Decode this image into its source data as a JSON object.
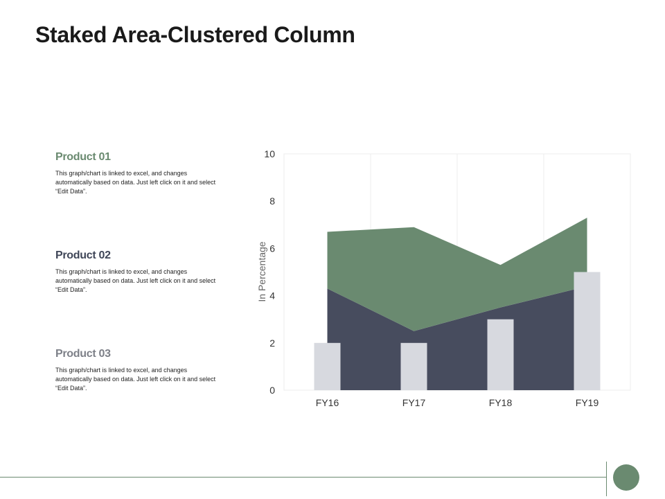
{
  "title": "Staked Area-Clustered Column",
  "products": [
    {
      "title": "Product 01",
      "description": "This graph/chart is linked to excel, and changes automatically based on data. Just left click on it and select “Edit Data”."
    },
    {
      "title": "Product 02",
      "description": "This graph/chart is linked to excel, and changes automatically based on data. Just left click on it and select “Edit Data”."
    },
    {
      "title": "Product 03",
      "description": "This graph/chart is linked to excel, and changes automatically based on data. Just left click on it and select “Edit Data”."
    }
  ],
  "chart_data": {
    "type": "bar",
    "categories": [
      "FY16",
      "FY17",
      "FY18",
      "FY19"
    ],
    "ylabel": "In Percentage",
    "ylim": [
      0,
      10
    ],
    "yticks": [
      0,
      2,
      4,
      6,
      8,
      10
    ],
    "grid": "vertical",
    "series": [
      {
        "kind": "stacked-area",
        "values": [
          4.3,
          2.5,
          3.5,
          4.4
        ],
        "color": "#474c5e"
      },
      {
        "kind": "stacked-area",
        "values": [
          2.4,
          4.4,
          1.8,
          2.9
        ],
        "color": "#6a8a70"
      },
      {
        "kind": "column",
        "values": [
          2,
          2,
          3,
          5
        ],
        "color": "#d7d9df"
      }
    ]
  }
}
